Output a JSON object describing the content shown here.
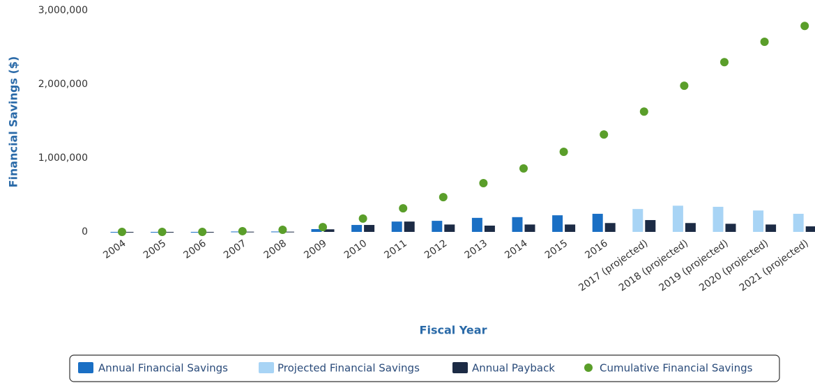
{
  "chart_data": {
    "type": "bar",
    "x_label": "Fiscal Year",
    "y_label": "Financial Savings ($)",
    "categories": [
      "2004",
      "2005",
      "2006",
      "2007",
      "2008",
      "2009",
      "2010",
      "2011",
      "2012",
      "2013",
      "2014",
      "2015",
      "2016",
      "2017 (projected)",
      "2018 (projected)",
      "2019 (projected)",
      "2020 (projected)",
      "2021 (projected)"
    ],
    "series": [
      {
        "name": "Annual Financial Savings",
        "type": "bar",
        "color": "#1a6fc4",
        "values": [
          0,
          0,
          0,
          5000,
          5000,
          38000,
          94000,
          140000,
          150000,
          190000,
          200000,
          225000,
          245000,
          null,
          null,
          null,
          null,
          null
        ]
      },
      {
        "name": "Projected Financial Savings",
        "type": "bar",
        "color": "#a8d4f5",
        "values": [
          null,
          null,
          null,
          null,
          null,
          null,
          null,
          null,
          null,
          null,
          null,
          null,
          null,
          310000,
          355000,
          340000,
          290000,
          245000
        ]
      },
      {
        "name": "Annual Payback",
        "type": "bar",
        "color": "#1c2b45",
        "values": [
          0,
          0,
          0,
          3000,
          3000,
          35000,
          94000,
          140000,
          100000,
          85000,
          100000,
          100000,
          120000,
          160000,
          120000,
          110000,
          100000,
          75000
        ]
      },
      {
        "name": "Cumulative Financial Savings",
        "type": "scatter",
        "color": "#5a9e2a",
        "values": [
          0,
          0,
          0,
          10000,
          28000,
          65000,
          180000,
          320000,
          470000,
          660000,
          860000,
          1085000,
          1320000,
          1630000,
          1980000,
          2300000,
          2575000,
          2790000
        ]
      }
    ],
    "ylim": [
      0,
      3000000
    ],
    "yticks": [
      0,
      {
        "value": 1000000,
        "label": "1,000,000"
      },
      {
        "value": 2000000,
        "label": "2,000,000"
      },
      {
        "value": 3000000,
        "label": "3,000,000"
      }
    ],
    "grid": false,
    "legend": "bottom"
  }
}
